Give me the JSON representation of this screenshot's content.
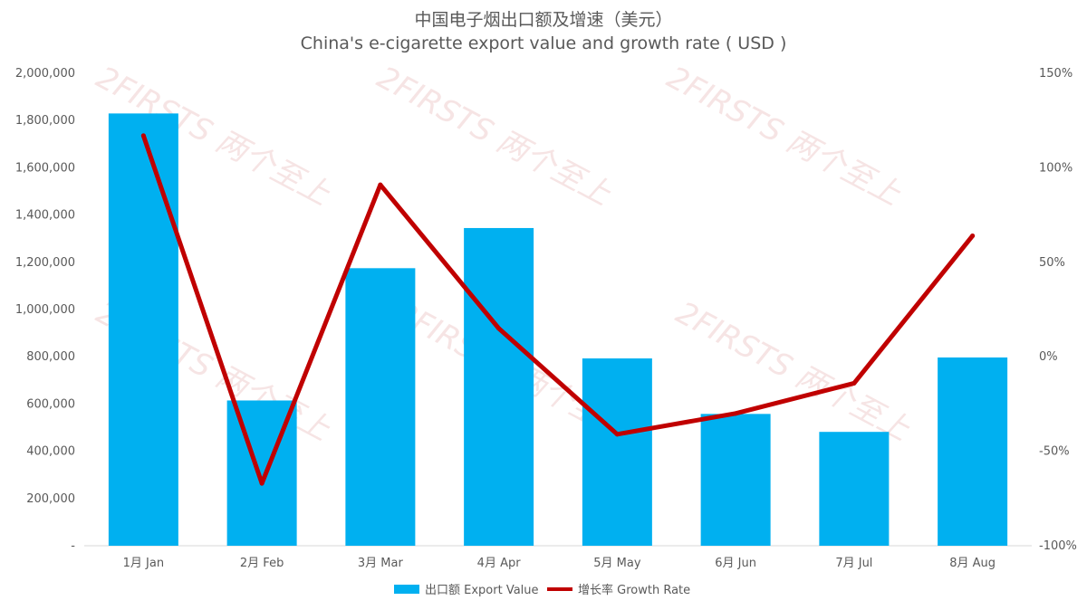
{
  "chart_data": {
    "type": "bar+line",
    "title": "中国电子烟出口额及增速（美元）",
    "subtitle": "China's e-cigarette export value and growth rate ( USD )",
    "categories": [
      "1月 Jan",
      "2月 Feb",
      "3月 Mar",
      "4月 Apr",
      "5月 May",
      "6月 Jun",
      "7月 Jul",
      "8月 Aug"
    ],
    "series": [
      {
        "name": "出口额 Export Value",
        "type": "bar",
        "axis": "left",
        "color": "#00b0f0",
        "values": [
          1830000,
          615000,
          1175000,
          1345000,
          793000,
          558000,
          482000,
          797000
        ]
      },
      {
        "name": "增长率 Growth Rate",
        "type": "line",
        "axis": "right",
        "color": "#c00000",
        "values": [
          117,
          -67,
          91,
          15,
          -41,
          -30,
          -14,
          64
        ]
      }
    ],
    "y_left": {
      "ylim": [
        0,
        2000000
      ],
      "ticks": [
        0,
        200000,
        400000,
        600000,
        800000,
        1000000,
        1200000,
        1400000,
        1600000,
        1800000,
        2000000
      ],
      "tick_labels": [
        "-",
        "200,000",
        "400,000",
        "600,000",
        "800,000",
        "1,000,000",
        "1,200,000",
        "1,400,000",
        "1,600,000",
        "1,800,000",
        "2,000,000"
      ]
    },
    "y_right": {
      "ylim": [
        -100,
        150
      ],
      "ticks": [
        -100,
        -50,
        0,
        50,
        100,
        150
      ],
      "tick_labels": [
        "-100%",
        "-50%",
        "0%",
        "50%",
        "100%",
        "150%"
      ]
    },
    "legend_position": "bottom",
    "grid": false,
    "watermark": "2FIRSTS 两个至上",
    "axis_color": "#d9d9d9"
  }
}
